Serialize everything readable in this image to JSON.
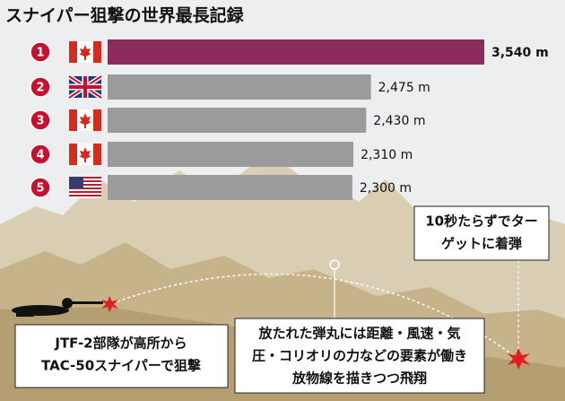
{
  "chart_data": {
    "type": "bar",
    "orientation": "horizontal",
    "title": "スナイパー狙撃の世界最長記録",
    "categories": [
      "1",
      "2",
      "3",
      "4",
      "5"
    ],
    "values": [
      3540,
      2475,
      2430,
      2310,
      2300
    ],
    "value_labels": [
      "3,540 m",
      "2,475 m",
      "2,430 m",
      "2,310 m",
      "2,300 m"
    ],
    "colors": [
      "#8c2b5d",
      "#9b9b9b",
      "#9b9b9b",
      "#9b9b9b",
      "#9b9b9b"
    ],
    "annotations": [
      {
        "lines": [
          "10秒たらずでター",
          "ゲットに着弾"
        ]
      },
      {
        "lines": [
          "JTF-2部隊が高所から",
          "TAC-50スナイパーで狙撃"
        ]
      },
      {
        "lines": [
          "放たれた弾丸には距離・風速・気",
          "圧・コリオリの力などの要素が働き",
          "放物線を描きつつ飛翔"
        ]
      }
    ]
  }
}
